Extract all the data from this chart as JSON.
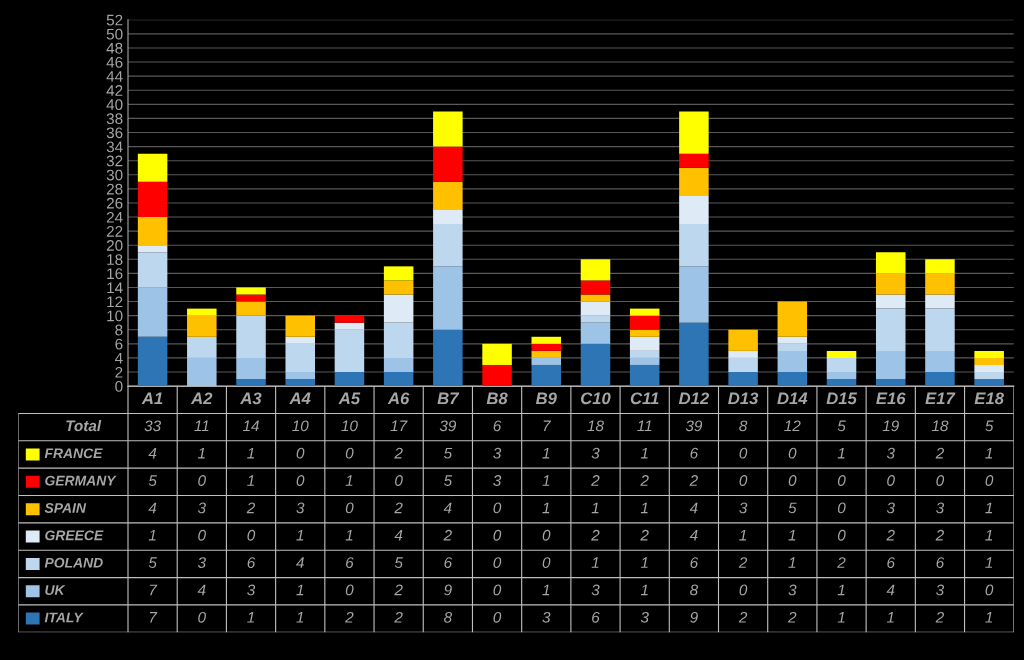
{
  "chart_data": {
    "type": "bar",
    "stacked": true,
    "categories": [
      "A1",
      "A2",
      "A3",
      "A4",
      "A5",
      "A6",
      "B7",
      "B8",
      "B9",
      "C10",
      "C11",
      "D12",
      "D13",
      "D14",
      "D15",
      "E16",
      "E17",
      "E18"
    ],
    "series": [
      {
        "name": "ITALY",
        "color": "#2e75b6",
        "values": [
          7,
          0,
          1,
          1,
          2,
          2,
          8,
          0,
          3,
          6,
          3,
          9,
          2,
          2,
          1,
          1,
          2,
          1
        ]
      },
      {
        "name": "UK",
        "color": "#9dc3e6",
        "values": [
          7,
          4,
          3,
          1,
          0,
          2,
          9,
          0,
          1,
          3,
          1,
          8,
          0,
          3,
          1,
          4,
          3,
          0
        ]
      },
      {
        "name": "POLAND",
        "color": "#bdd7ee",
        "values": [
          5,
          3,
          6,
          4,
          6,
          5,
          6,
          0,
          0,
          1,
          1,
          6,
          2,
          1,
          2,
          6,
          6,
          1
        ]
      },
      {
        "name": "GREECE",
        "color": "#deebf7",
        "values": [
          1,
          0,
          0,
          1,
          1,
          4,
          2,
          0,
          0,
          2,
          2,
          4,
          1,
          1,
          0,
          2,
          2,
          1
        ]
      },
      {
        "name": "SPAIN",
        "color": "#ffc000",
        "values": [
          4,
          3,
          2,
          3,
          0,
          2,
          4,
          0,
          1,
          1,
          1,
          4,
          3,
          5,
          0,
          3,
          3,
          1
        ]
      },
      {
        "name": "GERMANY",
        "color": "#ff0000",
        "values": [
          5,
          0,
          1,
          0,
          1,
          0,
          5,
          3,
          1,
          2,
          2,
          2,
          0,
          0,
          0,
          0,
          0,
          0
        ]
      },
      {
        "name": "FRANCE",
        "color": "#ffff00",
        "values": [
          4,
          1,
          1,
          0,
          0,
          2,
          5,
          3,
          1,
          3,
          1,
          6,
          0,
          0,
          1,
          3,
          2,
          1
        ]
      }
    ],
    "annotations": [
      "Total"
    ],
    "totals": [
      "33",
      "11",
      "14",
      "10",
      "10",
      "17",
      "39",
      "6",
      "7",
      "18",
      "11",
      "39",
      "8",
      "12",
      "5",
      "19",
      "18",
      "5"
    ],
    "data_labels": true,
    "ylim": [
      0,
      52
    ],
    "yticks": [
      0,
      2,
      4,
      6,
      8,
      10,
      12,
      14,
      16,
      18,
      20,
      22,
      24,
      26,
      28,
      30,
      32,
      34,
      36,
      38,
      40,
      42,
      44,
      46,
      48,
      50,
      52
    ],
    "grid": "y",
    "legend": "bottom"
  }
}
